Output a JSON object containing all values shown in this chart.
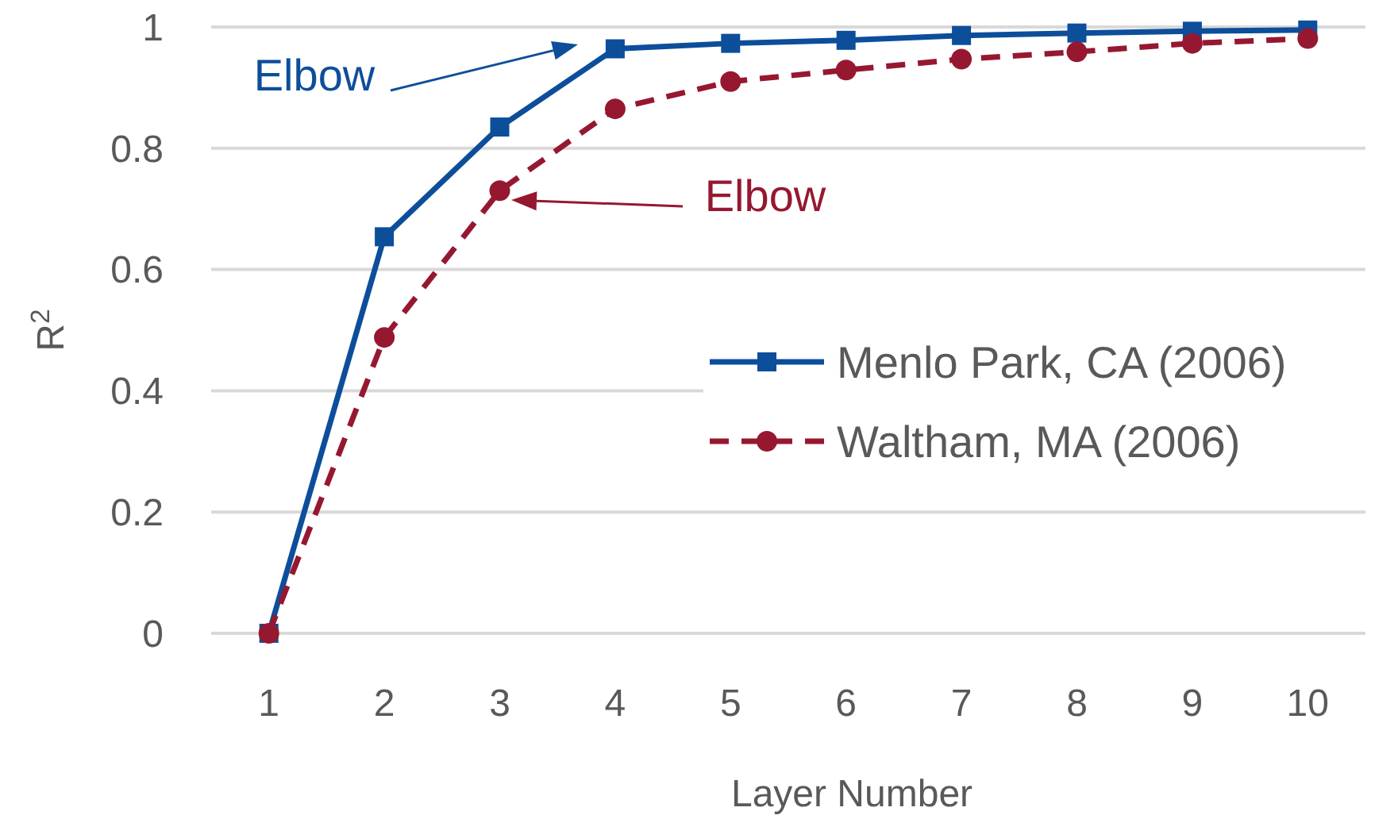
{
  "chart_data": {
    "type": "line",
    "xlabel": "Layer Number",
    "ylabel": "R$^{2}$",
    "x": [
      1,
      2,
      3,
      4,
      5,
      6,
      7,
      8,
      9,
      10
    ],
    "series": [
      {
        "name": "Menlo Park, CA (2006)",
        "color": "#0d4e9b",
        "marker": "square",
        "line_style": "solid",
        "values": [
          0,
          0.654,
          0.835,
          0.964,
          0.973,
          0.978,
          0.986,
          0.99,
          0.993,
          0.995
        ]
      },
      {
        "name": "Waltham, MA (2006)",
        "color": "#961830",
        "marker": "circle",
        "line_style": "dashed",
        "values": [
          0,
          0.488,
          0.73,
          0.865,
          0.91,
          0.929,
          0.947,
          0.959,
          0.973,
          0.981
        ]
      }
    ],
    "xlim": [
      0.5,
      10.5
    ],
    "xticks": [
      1,
      2,
      3,
      4,
      5,
      6,
      7,
      8,
      9,
      10
    ],
    "ylim": [
      0,
      1
    ],
    "yticks": [
      0,
      0.2,
      0.4,
      0.6,
      0.8,
      1
    ],
    "grid": "y",
    "legend": "right",
    "annotations": [
      "Elbow",
      "Elbow"
    ]
  }
}
